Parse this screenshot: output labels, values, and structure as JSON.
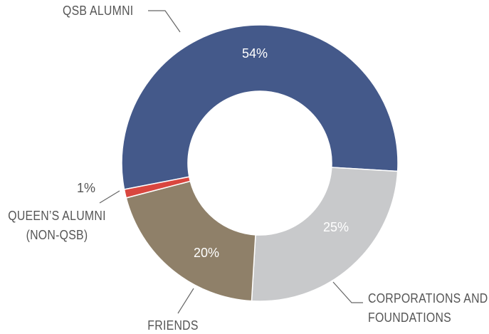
{
  "chart_data": {
    "type": "donut",
    "categories": [
      "QSB ALUMNI",
      "CORPORATIONS AND FOUNDATIONS",
      "FRIENDS",
      "QUEEN’S ALUMNI (NON-QSB)"
    ],
    "values": [
      54,
      25,
      20,
      1
    ],
    "value_labels": [
      "54%",
      "25%",
      "20%",
      "1%"
    ],
    "colors": [
      "#44598a",
      "#c8c9cb",
      "#8f8069",
      "#d9463f"
    ]
  }
}
